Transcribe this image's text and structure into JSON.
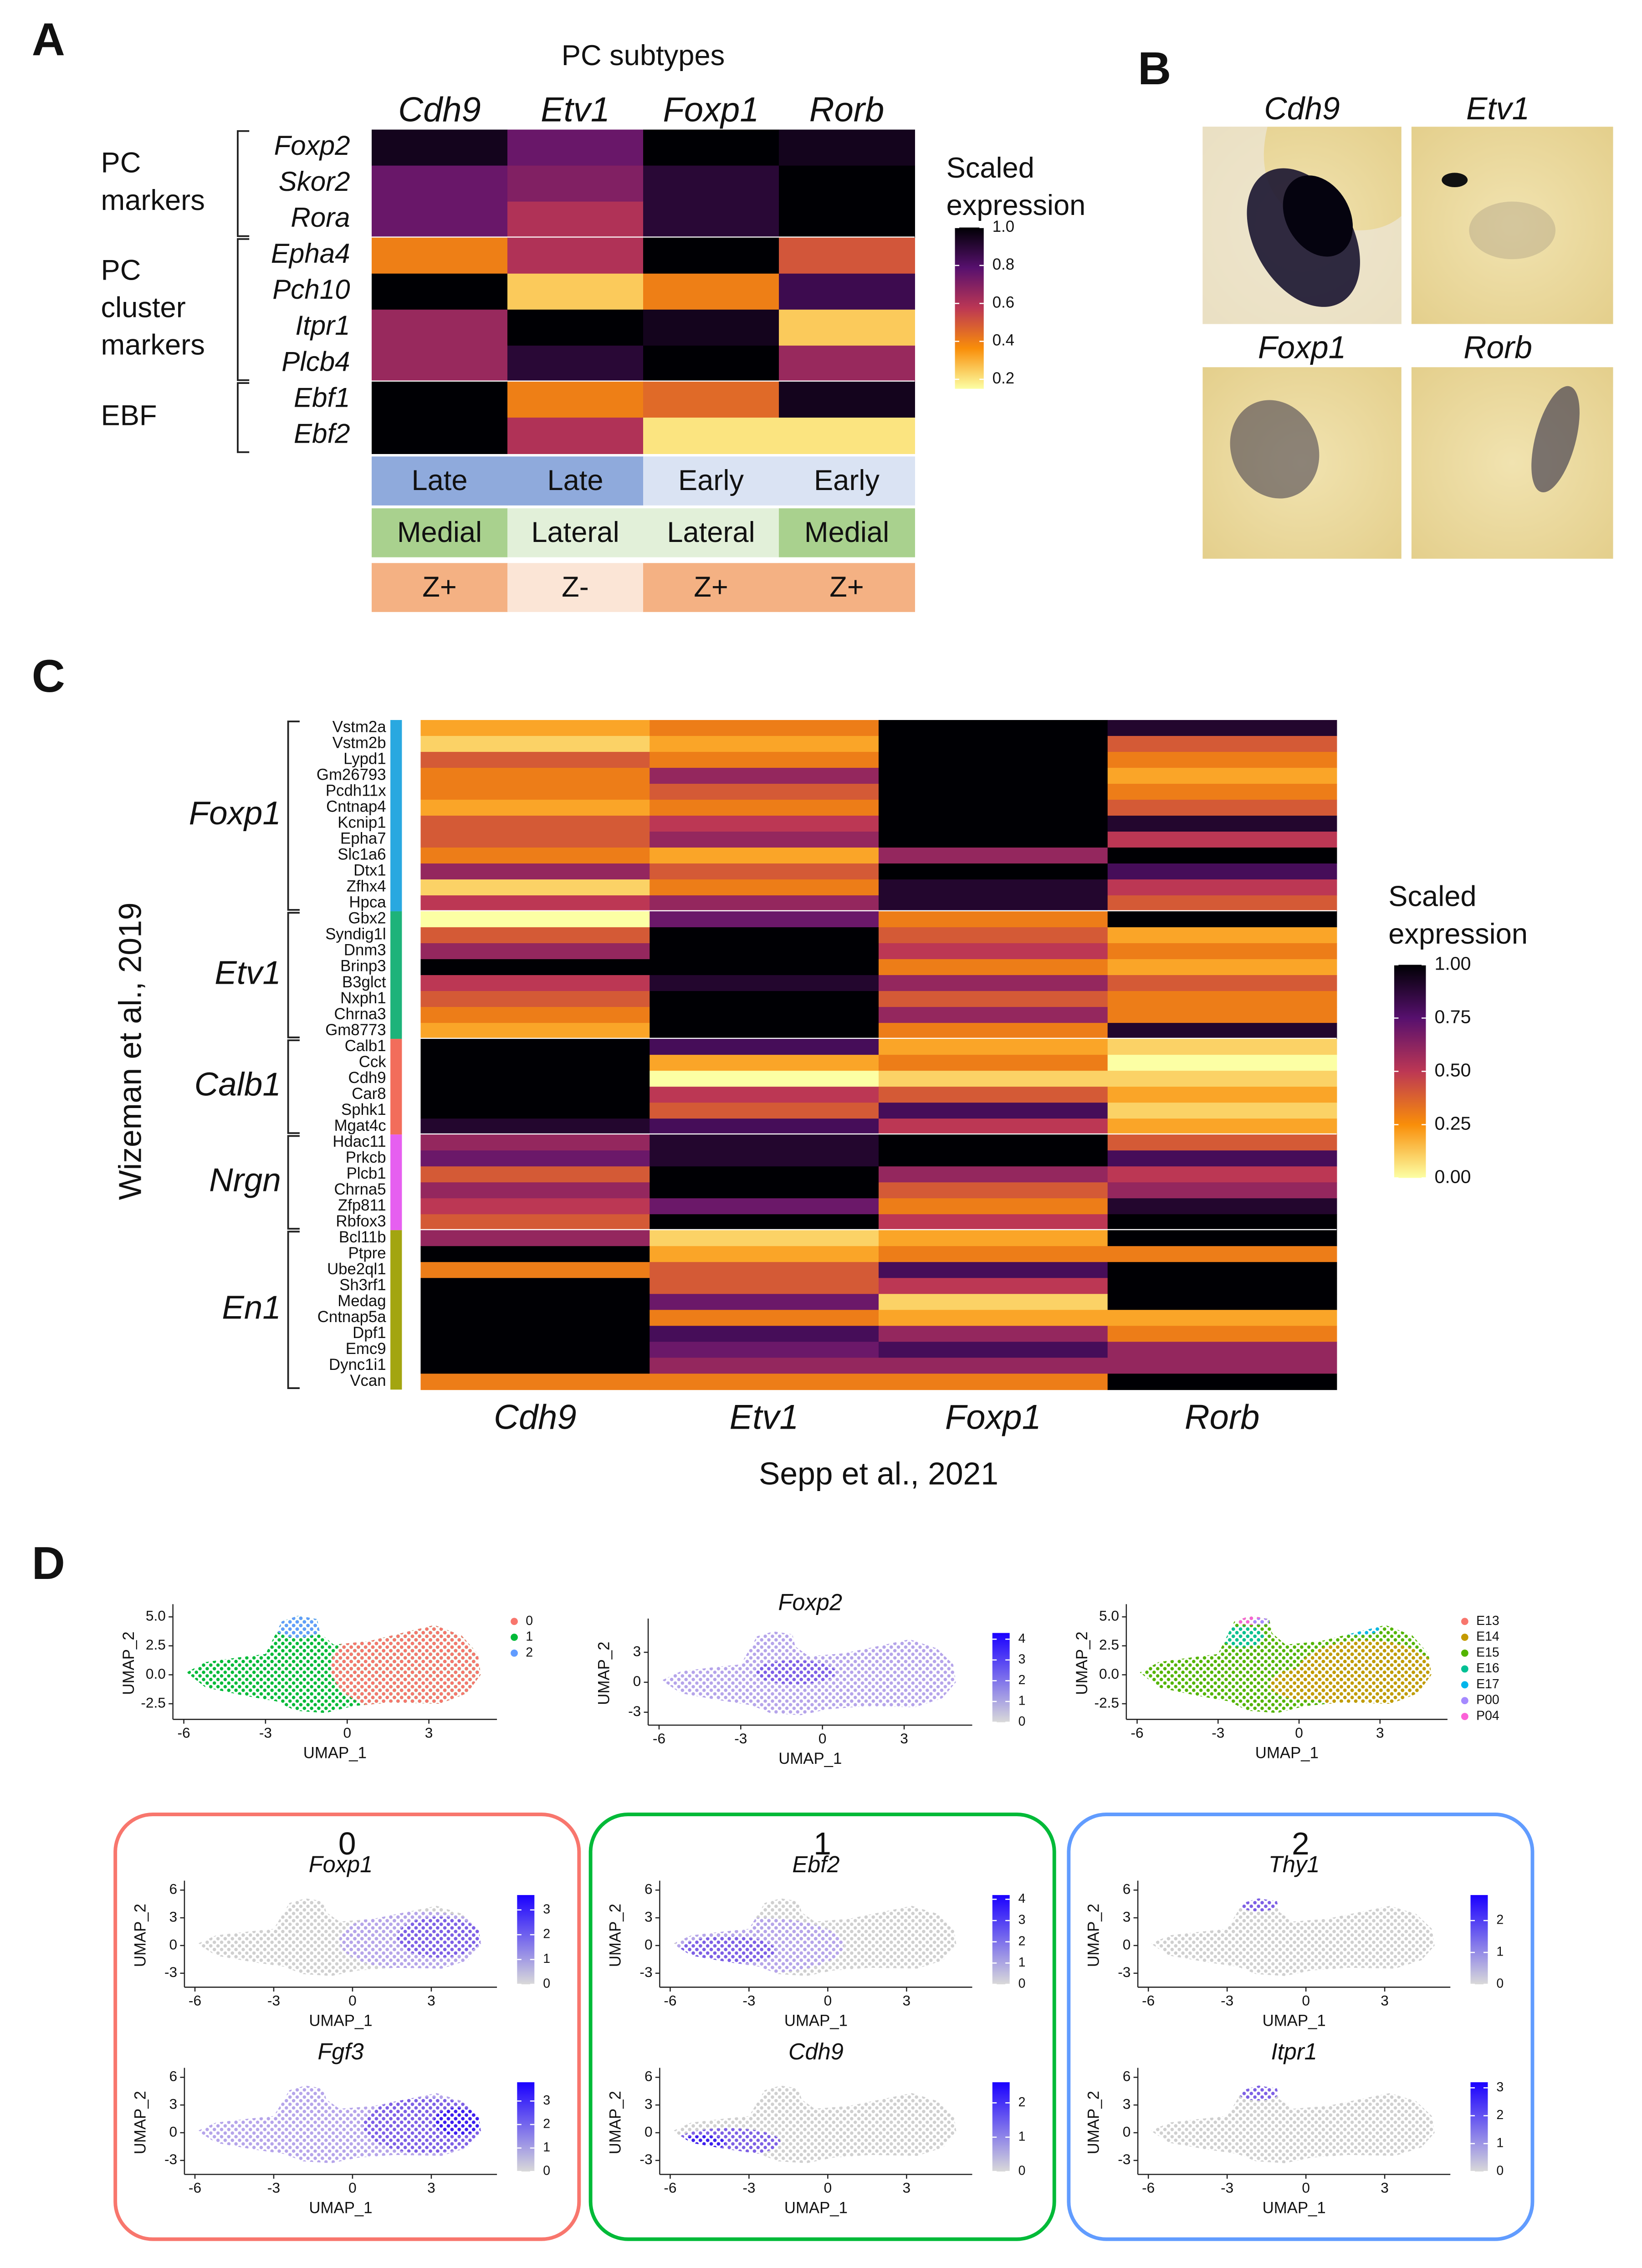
{
  "panel_labels": [
    "A",
    "B",
    "C",
    "D"
  ],
  "in_situ": {
    "labels": [
      "Cdh9",
      "Etv1",
      "Foxp1",
      "Rorb"
    ]
  },
  "clusters": [
    {
      "label": "0",
      "color": "#f8766d"
    },
    {
      "label": "1",
      "color": "#00ba38"
    },
    {
      "label": "2",
      "color": "#619cff"
    }
  ],
  "chart_data": [
    {
      "type": "heatmap",
      "title": "PC subtypes",
      "columns": [
        "Cdh9",
        "Etv1",
        "Foxp1",
        "Rorb"
      ],
      "groups": [
        {
          "label": [
            "PC",
            "markers"
          ],
          "rows": [
            "Foxp2",
            "Skor2",
            "Rora"
          ],
          "values": [
            [
              0.95,
              0.75,
              1,
              0.95
            ],
            [
              0.75,
              0.7,
              0.9,
              1
            ],
            [
              0.75,
              0.6,
              0.9,
              1
            ]
          ]
        },
        {
          "label": [
            "PC",
            "cluster",
            "markers"
          ],
          "rows": [
            "Epha4",
            "Pch10",
            "Itpr1",
            "Plcb4"
          ],
          "values": [
            [
              0.4,
              0.6,
              1,
              0.5
            ],
            [
              1,
              0.25,
              0.4,
              0.85
            ],
            [
              0.65,
              1,
              0.95,
              0.25
            ],
            [
              0.65,
              0.9,
              1,
              0.65
            ]
          ]
        },
        {
          "label": [
            "EBF"
          ],
          "rows": [
            "Ebf1",
            "Ebf2"
          ],
          "values": [
            [
              1,
              0.4,
              0.45,
              0.95
            ],
            [
              1,
              0.6,
              0.2,
              0.2
            ]
          ]
        }
      ],
      "annotations": [
        {
          "labels": [
            "Late",
            "Late",
            "Early",
            "Early"
          ],
          "colors": [
            "#8faadc",
            "#8faadc",
            "#dae3f3",
            "#dae3f3"
          ]
        },
        {
          "labels": [
            "Medial",
            "Lateral",
            "Lateral",
            "Medial"
          ],
          "colors": [
            "#a9d18e",
            "#e2f0d9",
            "#e2f0d9",
            "#a9d18e"
          ]
        },
        {
          "labels": [
            "Z+",
            "Z-",
            "Z+",
            "Z+"
          ],
          "colors": [
            "#f4b183",
            "#fbe5d6",
            "#f4b183",
            "#f4b183"
          ]
        }
      ],
      "colorbar": {
        "title": [
          "Scaled",
          "expression"
        ],
        "clim": [
          0.15,
          1
        ],
        "ticks": [
          0.2,
          0.4,
          0.6,
          0.8,
          {
            "value": 1,
            "label": "1.0"
          }
        ]
      },
      "colors": [
        "#fcffa4",
        "#f98e09",
        "#bc3754",
        "#57106e",
        "#000004"
      ]
    },
    {
      "type": "heatmap",
      "ylabel": "Wizeman et al., 2019",
      "xlabel": "Sepp et al., 2021",
      "columns": [
        "Cdh9",
        "Etv1",
        "Foxp1",
        "Rorb"
      ],
      "groups": [
        {
          "label": [
            "Foxp1"
          ],
          "color": "#29a8e0",
          "rows": [
            "Vstm2a",
            "Vstm2b",
            "Lypd1",
            "Gm26793",
            "Pcdh11x",
            "Cntnap4",
            "Kcnip1",
            "Epha7",
            "Slc1a6",
            "Dtx1",
            "Zfhx4",
            "Hpca"
          ],
          "values": [
            [
              0.2,
              0.3,
              1,
              0.9
            ],
            [
              0.1,
              0.2,
              1,
              0.4
            ],
            [
              0.4,
              0.3,
              1,
              0.3
            ],
            [
              0.3,
              0.6,
              1,
              0.2
            ],
            [
              0.3,
              0.4,
              1,
              0.3
            ],
            [
              0.2,
              0.3,
              1,
              0.4
            ],
            [
              0.4,
              0.5,
              1,
              0.9
            ],
            [
              0.4,
              0.6,
              1,
              0.5
            ],
            [
              0.3,
              0.2,
              0.6,
              1
            ],
            [
              0.6,
              0.4,
              1,
              0.8
            ],
            [
              0.1,
              0.3,
              0.9,
              0.5
            ],
            [
              0.5,
              0.6,
              0.9,
              0.4
            ]
          ]
        },
        {
          "label": [
            "Etv1"
          ],
          "color": "#1db37a",
          "rows": [
            "Gbx2",
            "Syndig1l",
            "Dnm3",
            "Brinp3",
            "B3glct",
            "Nxph1",
            "Chrna3",
            "Gm8773"
          ],
          "values": [
            [
              0,
              0.7,
              0.3,
              1
            ],
            [
              0.4,
              1,
              0.4,
              0.2
            ],
            [
              0.6,
              1,
              0.5,
              0.3
            ],
            [
              1,
              1,
              0.3,
              0.2
            ],
            [
              0.5,
              0.9,
              0.6,
              0.4
            ],
            [
              0.4,
              1,
              0.4,
              0.3
            ],
            [
              0.3,
              1,
              0.6,
              0.3
            ],
            [
              0.2,
              1,
              0.3,
              0.9
            ]
          ]
        },
        {
          "label": [
            "Calb1"
          ],
          "color": "#f26d5b",
          "rows": [
            "Calb1",
            "Cck",
            "Cdh9",
            "Car8",
            "Sphk1",
            "Mgat4c"
          ],
          "values": [
            [
              1,
              0.8,
              0.2,
              0.1
            ],
            [
              1,
              0.2,
              0.3,
              0
            ],
            [
              1,
              0,
              0.1,
              0.1
            ],
            [
              1,
              0.5,
              0.4,
              0.2
            ],
            [
              1,
              0.4,
              0.8,
              0.1
            ],
            [
              0.9,
              0.8,
              0.5,
              0.2
            ]
          ]
        },
        {
          "label": [
            "Nrgn"
          ],
          "color": "#e65ff0",
          "rows": [
            "Hdac11",
            "Prkcb",
            "Plcb1",
            "Chrna5",
            "Zfp811",
            "Rbfox3"
          ],
          "values": [
            [
              0.6,
              0.9,
              1,
              0.4
            ],
            [
              0.7,
              0.9,
              1,
              0.8
            ],
            [
              0.4,
              1,
              0.6,
              0.5
            ],
            [
              0.6,
              1,
              0.4,
              0.6
            ],
            [
              0.5,
              0.7,
              0.3,
              0.9
            ],
            [
              0.4,
              1,
              0.5,
              1
            ]
          ]
        },
        {
          "label": [
            "En1"
          ],
          "color": "#a3a510",
          "rows": [
            "Bcl11b",
            "Ptpre",
            "Ube2ql1",
            "Sh3rf1",
            "Medag",
            "Cntnap5a",
            "Dpf1",
            "Emc9",
            "Dync1i1",
            "Vcan"
          ],
          "values": [
            [
              0.6,
              0.1,
              0.2,
              1
            ],
            [
              1,
              0.2,
              0.3,
              0.3
            ],
            [
              0.3,
              0.4,
              0.8,
              1
            ],
            [
              1,
              0.4,
              0.5,
              1
            ],
            [
              1,
              0.7,
              0.1,
              1
            ],
            [
              1,
              0.3,
              0.2,
              0.2
            ],
            [
              1,
              0.8,
              0.6,
              0.3
            ],
            [
              1,
              0.7,
              0.8,
              0.6
            ],
            [
              1,
              0.6,
              0.6,
              0.6
            ],
            [
              0.3,
              0.3,
              0.3,
              1
            ]
          ]
        }
      ],
      "colorbar": {
        "title": [
          "Scaled",
          "expression"
        ],
        "clim": [
          0,
          1
        ],
        "ticks": [
          {
            "value": 0,
            "label": "0.00"
          },
          0.25,
          {
            "value": 0.5,
            "label": "0.50"
          },
          0.75,
          {
            "value": 1,
            "label": "1.00"
          }
        ]
      },
      "colors": [
        "#fcffa4",
        "#f98e09",
        "#bc3754",
        "#57106e",
        "#000004"
      ]
    },
    {
      "type": "umap",
      "xlabel": "UMAP_1",
      "ylabel": "UMAP_2",
      "xlim": [
        -6.4,
        5.5
      ],
      "ylim": [
        -3.6,
        5.6
      ],
      "xticks": [
        -6,
        -3,
        0,
        3
      ],
      "yticks": [
        -2.5,
        {
          "value": 0,
          "label": "0.0"
        },
        2.5,
        {
          "value": 5,
          "label": "5.0"
        }
      ],
      "legend": {
        "names": [
          "0",
          "1",
          "2"
        ],
        "colors": [
          "#f8766d",
          "#00ba38",
          "#619cff"
        ]
      }
    },
    {
      "type": "umap",
      "title": "Foxp2",
      "xlabel": "UMAP_1",
      "ylabel": "UMAP_2",
      "xlim": [
        -6.4,
        5.5
      ],
      "ylim": [
        -4,
        5.8
      ],
      "xticks": [
        -6,
        -3,
        0,
        3
      ],
      "yticks": [
        -3,
        0,
        3
      ],
      "colorbar": {
        "clim": [
          0,
          4.3
        ],
        "ticks": [
          0,
          1,
          2,
          3,
          4
        ]
      },
      "colors": [
        "#d9d9d9",
        "#1a00ff"
      ]
    },
    {
      "type": "umap",
      "xlabel": "UMAP_1",
      "ylabel": "UMAP_2",
      "xlim": [
        -6.4,
        5.5
      ],
      "ylim": [
        -3.6,
        5.6
      ],
      "xticks": [
        -6,
        -3,
        0,
        3
      ],
      "yticks": [
        -2.5,
        {
          "value": 0,
          "label": "0.0"
        },
        2.5,
        {
          "value": 5,
          "label": "5.0"
        }
      ],
      "legend": {
        "names": [
          "E13",
          "E14",
          "E15",
          "E16",
          "E17",
          "P00",
          "P04"
        ],
        "colors": [
          "#f8766d",
          "#c49a00",
          "#53b400",
          "#00c094",
          "#00b6eb",
          "#a58aff",
          "#fb61d7"
        ]
      }
    },
    {
      "type": "umap",
      "title": "Foxp1",
      "xlabel": "UMAP_1",
      "ylabel": "UMAP_2",
      "xlim": [
        -6.4,
        5.5
      ],
      "ylim": [
        -4.2,
        6.4
      ],
      "xticks": [
        -6,
        -3,
        0,
        3
      ],
      "yticks": [
        -3,
        0,
        3,
        6
      ],
      "colorbar": {
        "clim": [
          0,
          3.6
        ],
        "ticks": [
          0,
          1,
          2,
          3
        ]
      },
      "colors": [
        "#d9d9d9",
        "#1a00ff"
      ]
    },
    {
      "type": "umap",
      "title": "Fgf3",
      "xlabel": "UMAP_1",
      "ylabel": "UMAP_2",
      "xlim": [
        -6.4,
        5.5
      ],
      "ylim": [
        -4.2,
        6.4
      ],
      "xticks": [
        -6,
        -3,
        0,
        3
      ],
      "yticks": [
        -3,
        0,
        3,
        6
      ],
      "colorbar": {
        "clim": [
          0,
          3.8
        ],
        "ticks": [
          0,
          1,
          2,
          3
        ]
      },
      "colors": [
        "#d9d9d9",
        "#1a00ff"
      ]
    },
    {
      "type": "umap",
      "title": "Ebf2",
      "xlabel": "UMAP_1",
      "ylabel": "UMAP_2",
      "xlim": [
        -6.4,
        5.5
      ],
      "ylim": [
        -4.2,
        6.4
      ],
      "xticks": [
        -6,
        -3,
        0,
        3
      ],
      "yticks": [
        -3,
        0,
        3,
        6
      ],
      "colorbar": {
        "clim": [
          0,
          4.2
        ],
        "ticks": [
          0,
          1,
          2,
          3,
          4
        ]
      },
      "colors": [
        "#d9d9d9",
        "#1a00ff"
      ]
    },
    {
      "type": "umap",
      "title": "Cdh9",
      "xlabel": "UMAP_1",
      "ylabel": "UMAP_2",
      "xlim": [
        -6.4,
        5.5
      ],
      "ylim": [
        -4.2,
        6.4
      ],
      "xticks": [
        -6,
        -3,
        0,
        3
      ],
      "yticks": [
        -3,
        0,
        3,
        6
      ],
      "colorbar": {
        "clim": [
          0,
          2.6
        ],
        "ticks": [
          0,
          1,
          2
        ]
      },
      "colors": [
        "#d9d9d9",
        "#1a00ff"
      ]
    },
    {
      "type": "umap",
      "title": "Thy1",
      "xlabel": "UMAP_1",
      "ylabel": "UMAP_2",
      "xlim": [
        -6.4,
        5.5
      ],
      "ylim": [
        -4.2,
        6.4
      ],
      "xticks": [
        -6,
        -3,
        0,
        3
      ],
      "yticks": [
        -3,
        0,
        3,
        6
      ],
      "colorbar": {
        "clim": [
          0,
          2.8
        ],
        "ticks": [
          0,
          1,
          2
        ]
      },
      "colors": [
        "#d9d9d9",
        "#1a00ff"
      ]
    },
    {
      "type": "umap",
      "title": "Itpr1",
      "xlabel": "UMAP_1",
      "ylabel": "UMAP_2",
      "xlim": [
        -6.4,
        5.5
      ],
      "ylim": [
        -4.2,
        6.4
      ],
      "xticks": [
        -6,
        -3,
        0,
        3
      ],
      "yticks": [
        -3,
        0,
        3,
        6
      ],
      "colorbar": {
        "clim": [
          0,
          3.2
        ],
        "ticks": [
          0,
          1,
          2,
          3
        ]
      },
      "colors": [
        "#d9d9d9",
        "#1a00ff"
      ]
    }
  ]
}
